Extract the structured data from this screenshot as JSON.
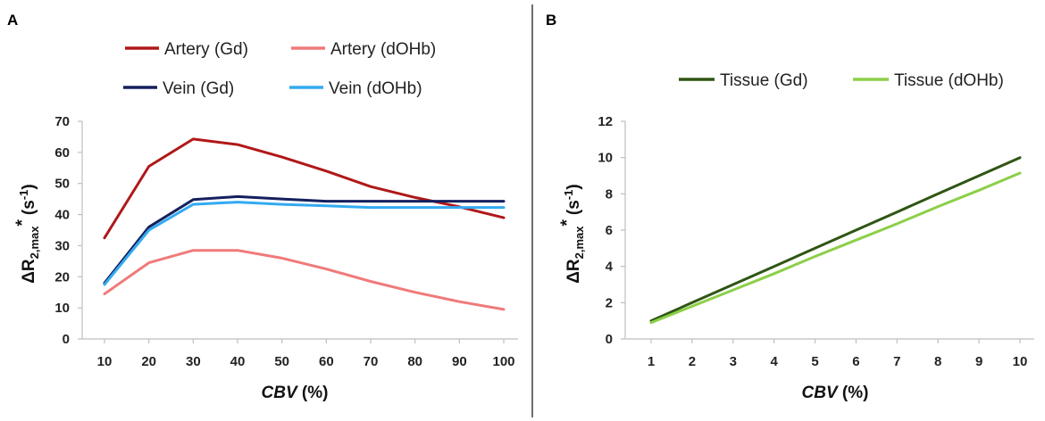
{
  "panels": [
    {
      "letter": "A",
      "chart_data": {
        "type": "line",
        "categories": [
          "10",
          "20",
          "30",
          "40",
          "50",
          "60",
          "70",
          "80",
          "90",
          "100"
        ],
        "x": [
          10,
          20,
          30,
          40,
          50,
          60,
          70,
          80,
          90,
          100
        ],
        "series": [
          {
            "name": "Artery (Gd)",
            "color": "#b01818",
            "values": [
              32.5,
              55.5,
              64.3,
              62.5,
              58.5,
              54.0,
              49.0,
              45.5,
              42.5,
              39.0
            ]
          },
          {
            "name": "Artery (dOHb)",
            "color": "#f07a7a",
            "values": [
              14.5,
              24.5,
              28.5,
              28.5,
              26.0,
              22.5,
              18.5,
              15.0,
              12.0,
              9.5
            ]
          },
          {
            "name": "Vein (Gd)",
            "color": "#14205e",
            "values": [
              18.0,
              36.0,
              44.8,
              45.8,
              45.0,
              44.3,
              44.3,
              44.3,
              44.3,
              44.3
            ]
          },
          {
            "name": "Vein (dOHb)",
            "color": "#33aaf0",
            "values": [
              17.5,
              35.0,
              43.3,
              44.0,
              43.3,
              42.8,
              42.3,
              42.3,
              42.3,
              42.3
            ]
          }
        ],
        "xlabel": "CBV",
        "xlabel_unit": " (%)",
        "ylabel": "ΔR",
        "ylabel_sub": "2,max",
        "ylabel_sup": "*",
        "ylabel_unit": "(s",
        "ylabel_unit_sup": "-1",
        "ylabel_close": ")",
        "yticks": [
          "0",
          "10",
          "20",
          "30",
          "40",
          "50",
          "60",
          "70"
        ],
        "ylim": [
          0,
          70
        ],
        "legend_position": "top",
        "grid": false
      }
    },
    {
      "letter": "B",
      "chart_data": {
        "type": "line",
        "categories": [
          "1",
          "2",
          "3",
          "4",
          "5",
          "6",
          "7",
          "8",
          "9",
          "10"
        ],
        "x": [
          1,
          2,
          3,
          4,
          5,
          6,
          7,
          8,
          9,
          10
        ],
        "series": [
          {
            "name": "Tissue (Gd)",
            "color": "#2f5614",
            "values": [
              1.0,
              2.0,
              3.0,
              4.0,
              5.0,
              6.0,
              7.0,
              8.0,
              9.0,
              10.0
            ]
          },
          {
            "name": "Tissue (dOHb)",
            "color": "#8ccf48",
            "values": [
              0.9,
              1.8,
              2.7,
              3.6,
              4.55,
              5.45,
              6.35,
              7.3,
              8.2,
              9.15
            ]
          }
        ],
        "xlabel": "CBV",
        "xlabel_unit": " (%)",
        "ylabel": "ΔR",
        "ylabel_sub": "2,max",
        "ylabel_sup": "*",
        "ylabel_unit": "(s",
        "ylabel_unit_sup": "-1",
        "ylabel_close": ")",
        "yticks": [
          "0",
          "2",
          "4",
          "6",
          "8",
          "10",
          "12"
        ],
        "ylim": [
          0,
          12
        ],
        "legend_position": "top",
        "grid": false
      }
    }
  ]
}
